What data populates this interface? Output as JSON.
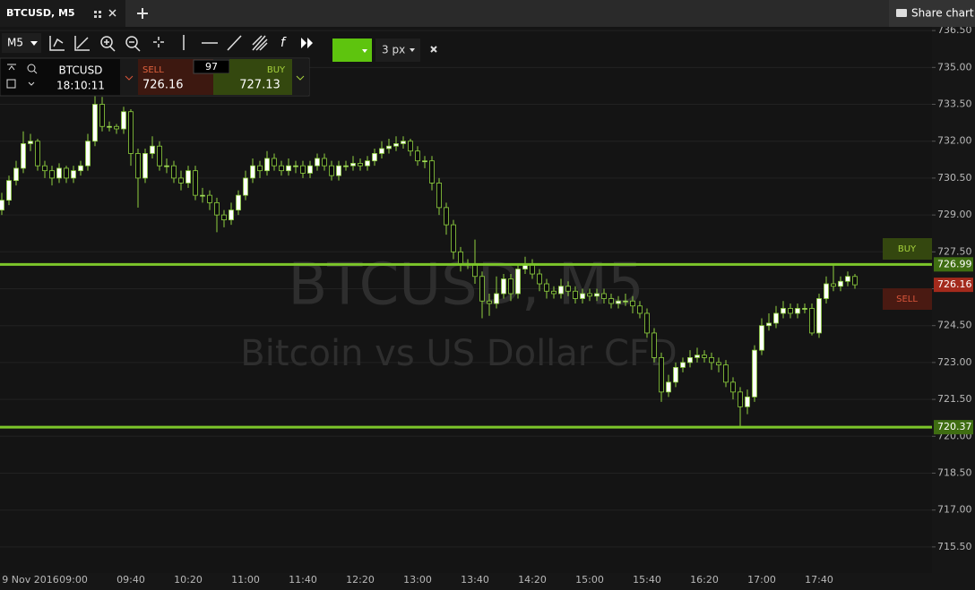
{
  "chart_data": {
    "type": "candlestick",
    "title": "BTCUSD, M5",
    "subtitle": "Bitcoin vs US Dollar CFD",
    "categories": [
      null,
      null,
      null,
      null,
      "9 Nov 2016",
      null,
      null,
      null,
      null,
      null,
      "09:00",
      null,
      null,
      null,
      null,
      null,
      null,
      null,
      "09:40",
      null,
      null,
      null,
      null,
      null,
      null,
      null,
      "10:20",
      null,
      null,
      null,
      null,
      null,
      null,
      null,
      "11:00",
      null,
      null,
      null,
      null,
      null,
      null,
      null,
      "11:40",
      null,
      null,
      null,
      null,
      null,
      null,
      null,
      "12:20",
      null,
      null,
      null,
      null,
      null,
      null,
      null,
      "13:00",
      null,
      null,
      null,
      null,
      null,
      null,
      null,
      "13:40",
      null,
      null,
      null,
      null,
      null,
      null,
      null,
      "14:20",
      null,
      null,
      null,
      null,
      null,
      null,
      null,
      "15:00",
      null,
      null,
      null,
      null,
      null,
      null,
      null,
      "15:40",
      null,
      null,
      null,
      null,
      null,
      null,
      null,
      "16:20",
      null,
      null,
      null,
      null,
      null,
      null,
      null,
      "17:00",
      null,
      null,
      null,
      null,
      null,
      null,
      null,
      "17:40",
      null,
      null,
      null,
      null,
      null
    ],
    "open": [
      729.2,
      729.6,
      730.4,
      730.9,
      731.9,
      732.0,
      731.0,
      730.8,
      730.5,
      730.9,
      730.5,
      730.8,
      731.0,
      732.0,
      733.5,
      732.6,
      732.6,
      732.5,
      733.2,
      731.5,
      730.5,
      731.5,
      731.8,
      731.0,
      731.0,
      730.5,
      730.3,
      730.8,
      729.8,
      729.8,
      729.5,
      729.0,
      728.8,
      729.2,
      729.8,
      730.5,
      731.0,
      730.8,
      731.3,
      731.0,
      730.8,
      731.0,
      731.0,
      730.7,
      731.0,
      731.3,
      731.0,
      730.6,
      731.0,
      731.0,
      731.1,
      731.0,
      731.2,
      731.5,
      731.7,
      731.8,
      731.9,
      732.0,
      731.6,
      731.2,
      731.2,
      730.3,
      729.3,
      728.6,
      727.5,
      727.0,
      727.0,
      726.5,
      725.5,
      725.4,
      725.8,
      726.4,
      725.8,
      726.8,
      727.0,
      726.6,
      726.2,
      725.9,
      725.8,
      726.1,
      725.9,
      725.6,
      725.8,
      725.7,
      725.8,
      725.6,
      725.4,
      725.5,
      725.5,
      725.3,
      725.0,
      724.2,
      723.2,
      721.8,
      722.2,
      722.8,
      723.0,
      723.2,
      723.3,
      723.2,
      723.0,
      722.9,
      722.2,
      721.8,
      721.2,
      721.6,
      723.5,
      724.5,
      724.6,
      725.0,
      725.2,
      725.0,
      725.2,
      725.2,
      724.2,
      725.6,
      726.2,
      726.1,
      726.3,
      726.5
    ],
    "high": [
      729.9,
      730.6,
      731.2,
      732.4,
      732.3,
      732.1,
      731.2,
      731.0,
      731.1,
      731.0,
      731.0,
      731.2,
      732.3,
      734.1,
      733.8,
      732.8,
      732.7,
      733.4,
      733.3,
      731.7,
      731.7,
      732.2,
      732.0,
      731.3,
      731.2,
      730.8,
      731.0,
      731.0,
      730.1,
      730.0,
      729.7,
      729.2,
      729.5,
      730.0,
      730.8,
      731.3,
      731.2,
      731.6,
      731.5,
      731.2,
      731.3,
      731.2,
      731.2,
      731.2,
      731.5,
      731.5,
      731.2,
      731.2,
      731.2,
      731.4,
      731.3,
      731.4,
      731.7,
      732.0,
      732.1,
      732.2,
      732.2,
      732.1,
      731.8,
      731.4,
      731.4,
      730.5,
      729.5,
      728.8,
      727.7,
      727.2,
      728.0,
      726.7,
      725.8,
      726.5,
      726.6,
      726.6,
      727.0,
      727.3,
      727.2,
      726.8,
      726.4,
      726.1,
      726.4,
      726.3,
      726.1,
      726.0,
      726.0,
      726.0,
      726.0,
      725.8,
      725.7,
      725.8,
      725.7,
      725.5,
      725.2,
      724.4,
      723.4,
      722.5,
      723.0,
      723.2,
      723.5,
      723.6,
      723.5,
      723.4,
      723.2,
      723.1,
      722.4,
      722.0,
      721.9,
      723.7,
      724.8,
      725.0,
      725.3,
      725.5,
      725.4,
      725.4,
      725.4,
      725.4,
      725.8,
      726.5,
      727.0,
      726.5,
      726.7,
      726.6
    ],
    "low": [
      729.0,
      729.4,
      730.2,
      730.7,
      731.6,
      730.8,
      730.5,
      730.2,
      730.3,
      730.3,
      730.3,
      730.6,
      730.8,
      731.8,
      732.4,
      732.4,
      732.3,
      732.3,
      731.0,
      729.3,
      730.3,
      731.3,
      730.8,
      730.7,
      730.3,
      730.0,
      730.1,
      729.6,
      729.5,
      729.2,
      728.3,
      728.5,
      728.6,
      729.0,
      729.6,
      730.3,
      730.5,
      730.6,
      730.8,
      730.6,
      730.6,
      730.7,
      730.5,
      730.5,
      730.8,
      730.8,
      730.4,
      730.4,
      730.8,
      730.8,
      730.8,
      730.8,
      731.0,
      731.3,
      731.5,
      731.6,
      731.7,
      731.4,
      731.0,
      730.9,
      730.0,
      729.0,
      728.2,
      727.2,
      726.7,
      726.8,
      726.2,
      724.8,
      724.9,
      725.2,
      725.6,
      725.5,
      725.6,
      726.6,
      726.4,
      725.9,
      725.6,
      725.6,
      725.6,
      725.7,
      725.4,
      725.4,
      725.5,
      725.5,
      725.4,
      725.2,
      725.2,
      725.3,
      725.0,
      724.8,
      724.0,
      723.0,
      721.4,
      721.6,
      722.0,
      722.6,
      722.8,
      723.0,
      723.0,
      722.7,
      722.6,
      722.0,
      721.5,
      720.4,
      720.9,
      721.4,
      723.3,
      724.3,
      724.4,
      724.8,
      724.8,
      724.8,
      725.0,
      724.1,
      724.0,
      725.4,
      725.9,
      725.9,
      726.1,
      726.0
    ],
    "close": [
      729.6,
      730.4,
      730.9,
      731.9,
      732.0,
      731.0,
      730.8,
      730.5,
      730.9,
      730.5,
      730.8,
      731.0,
      732.0,
      733.5,
      732.6,
      732.6,
      732.5,
      733.2,
      731.5,
      730.5,
      731.5,
      731.8,
      731.0,
      731.0,
      730.5,
      730.3,
      730.8,
      729.8,
      729.8,
      729.5,
      729.0,
      728.8,
      729.2,
      729.8,
      730.5,
      731.0,
      730.8,
      731.3,
      731.0,
      730.8,
      731.0,
      731.0,
      730.7,
      731.0,
      731.3,
      731.0,
      730.6,
      731.0,
      731.0,
      731.1,
      731.0,
      731.2,
      731.5,
      731.7,
      731.8,
      731.9,
      732.0,
      731.6,
      731.2,
      731.2,
      730.3,
      729.3,
      728.6,
      727.5,
      727.0,
      727.0,
      726.5,
      725.5,
      725.4,
      725.8,
      726.4,
      725.8,
      726.8,
      727.0,
      726.6,
      726.2,
      725.9,
      725.8,
      726.1,
      725.9,
      725.6,
      725.8,
      725.7,
      725.8,
      725.6,
      725.4,
      725.5,
      725.5,
      725.3,
      725.0,
      724.2,
      723.2,
      721.8,
      722.2,
      722.8,
      723.0,
      723.2,
      723.3,
      723.2,
      723.0,
      722.9,
      722.2,
      721.8,
      721.2,
      721.6,
      723.5,
      724.5,
      724.6,
      725.0,
      725.2,
      725.0,
      725.2,
      725.2,
      724.2,
      725.6,
      726.2,
      726.1,
      726.3,
      726.5,
      726.16
    ],
    "up_color": "#ffffff",
    "down_color": "#0a0a0a",
    "wick_color": "#8fd13f",
    "levels": [
      726.99,
      720.37
    ],
    "level_color": "#7cc62a",
    "ylim": [
      714.44,
      736.65
    ],
    "yticks": [
      {
        "value": 736.5,
        "label": "736.50"
      },
      {
        "value": 735,
        "label": "735.00"
      },
      {
        "value": 733.5,
        "label": "733.50"
      },
      {
        "value": 732,
        "label": "732.00"
      },
      {
        "value": 730.5,
        "label": "730.50"
      },
      {
        "value": 729,
        "label": "729.00"
      },
      {
        "value": 727.5,
        "label": "727.50"
      },
      {
        "value": 726,
        "label": "726.00"
      },
      {
        "value": 724.5,
        "label": "724.50"
      },
      {
        "value": 723,
        "label": "723.00"
      },
      {
        "value": 721.5,
        "label": "721.50"
      },
      {
        "value": 720,
        "label": "720.00"
      },
      {
        "value": 718.5,
        "label": "718.50"
      },
      {
        "value": 717,
        "label": "717.00"
      },
      {
        "value": 715.5,
        "label": "715.50"
      }
    ],
    "grid": true
  },
  "ui": {
    "share": "Share chart",
    "timeframe": "M5",
    "line_width": "3 px",
    "symbol": "BTCUSD",
    "time": "18:10:11",
    "sell_label": "SELL",
    "spread": 97,
    "buy_label": "BUY",
    "buy_price": 727.13
  }
}
